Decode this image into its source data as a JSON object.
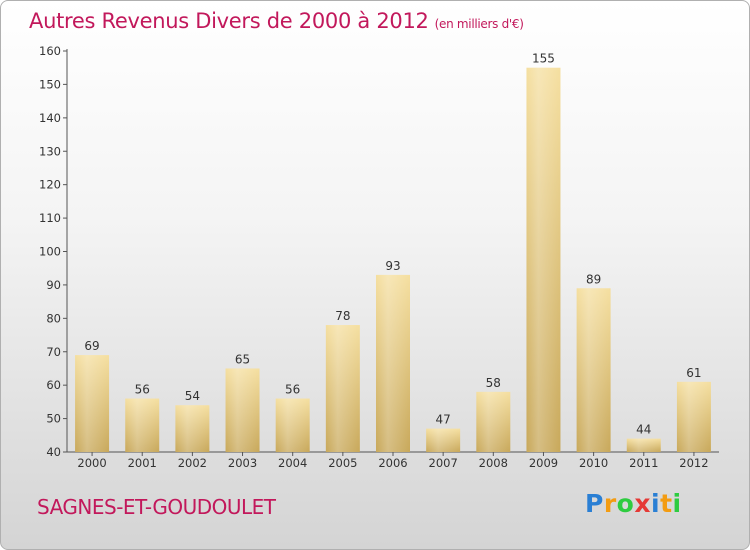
{
  "title": "Autres Revenus Divers de 2000 à 2012",
  "subtitle": "(en milliers d'€)",
  "location": "SAGNES-ET-GOUDOULET",
  "logo": {
    "letters": [
      "P",
      "r",
      "o",
      "x",
      "i",
      "t",
      "i"
    ],
    "colors": [
      "#2a7fd4",
      "#f39c12",
      "#2ecc40",
      "#e53935",
      "#2a7fd4",
      "#f39c12",
      "#2ecc40"
    ]
  },
  "colors": {
    "bar_light": "#f5dfa0",
    "bar_dark": "#c8a85a",
    "title": "#c2185b"
  },
  "chart_data": {
    "type": "bar",
    "title": "Autres Revenus Divers de 2000 à 2012",
    "subtitle": "(en milliers d'€)",
    "categories": [
      "2000",
      "2001",
      "2002",
      "2003",
      "2004",
      "2005",
      "2006",
      "2007",
      "2008",
      "2009",
      "2010",
      "2011",
      "2012"
    ],
    "values": [
      69,
      56,
      54,
      65,
      56,
      78,
      93,
      47,
      58,
      155,
      89,
      44,
      61
    ],
    "ylim": [
      40,
      160
    ],
    "yticks": [
      40,
      50,
      60,
      70,
      80,
      90,
      100,
      110,
      120,
      130,
      140,
      150,
      160
    ],
    "grid": false,
    "xlabel": "",
    "ylabel": ""
  }
}
